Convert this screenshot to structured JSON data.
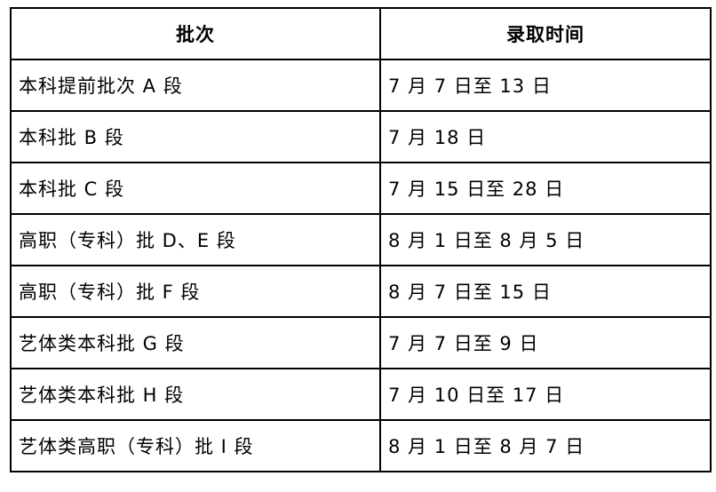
{
  "table": {
    "header": [
      "批次",
      "录取时间"
    ],
    "rows": [
      [
        "本科提前批次 A 段",
        "7 月 7 日至 13 日"
      ],
      [
        "本科批 B 段",
        "7 月 18 日"
      ],
      [
        "本科批 C 段",
        "7 月 15 日至 28 日"
      ],
      [
        "高职（专科）批 D、E 段",
        "8 月 1 日至 8 月 5 日"
      ],
      [
        "高职（专科）批 F 段",
        "8 月 7 日至 15 日"
      ],
      [
        "艺体类本科批 G 段",
        "7 月 7 日至 9 日"
      ],
      [
        "艺体类本科批 H 段",
        "7 月 10 日至 17 日"
      ],
      [
        "艺体类高职（专科）批 I 段",
        "8 月 1 日至 8 月 7 日"
      ]
    ]
  }
}
